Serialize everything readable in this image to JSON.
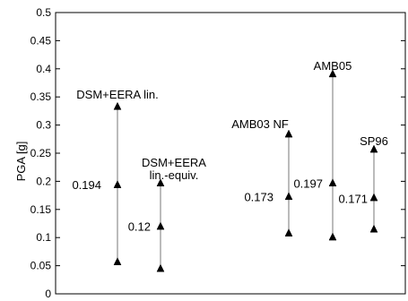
{
  "chart_data": {
    "type": "scatter",
    "title": "",
    "ylabel": "PGA [g]",
    "xlabel": "",
    "ylim": [
      0,
      0.5
    ],
    "yticks": [
      "0",
      "0.05",
      "0.1",
      "0.15",
      "0.2",
      "0.25",
      "0.3",
      "0.35",
      "0.4",
      "0.45",
      "0.5"
    ],
    "grid": false,
    "marker": "triangle-up",
    "series": [
      {
        "label_lines": [
          "DSM+EERA lin."
        ],
        "values": [
          0.057,
          0.194,
          0.333
        ],
        "median_label": "0.194"
      },
      {
        "label_lines": [
          "DSM+EERA",
          "lin.-equiv."
        ],
        "values": [
          0.045,
          0.12,
          0.197
        ],
        "median_label": "0.12"
      },
      {
        "label_lines": [
          "AMB03 NF"
        ],
        "values": [
          0.108,
          0.173,
          0.284
        ],
        "median_label": "0.173"
      },
      {
        "label_lines": [
          "AMB05"
        ],
        "values": [
          0.101,
          0.197,
          0.391
        ],
        "median_label": "0.197"
      },
      {
        "label_lines": [
          "SP96"
        ],
        "values": [
          0.115,
          0.171,
          0.257
        ],
        "median_label": "0.171"
      }
    ]
  }
}
